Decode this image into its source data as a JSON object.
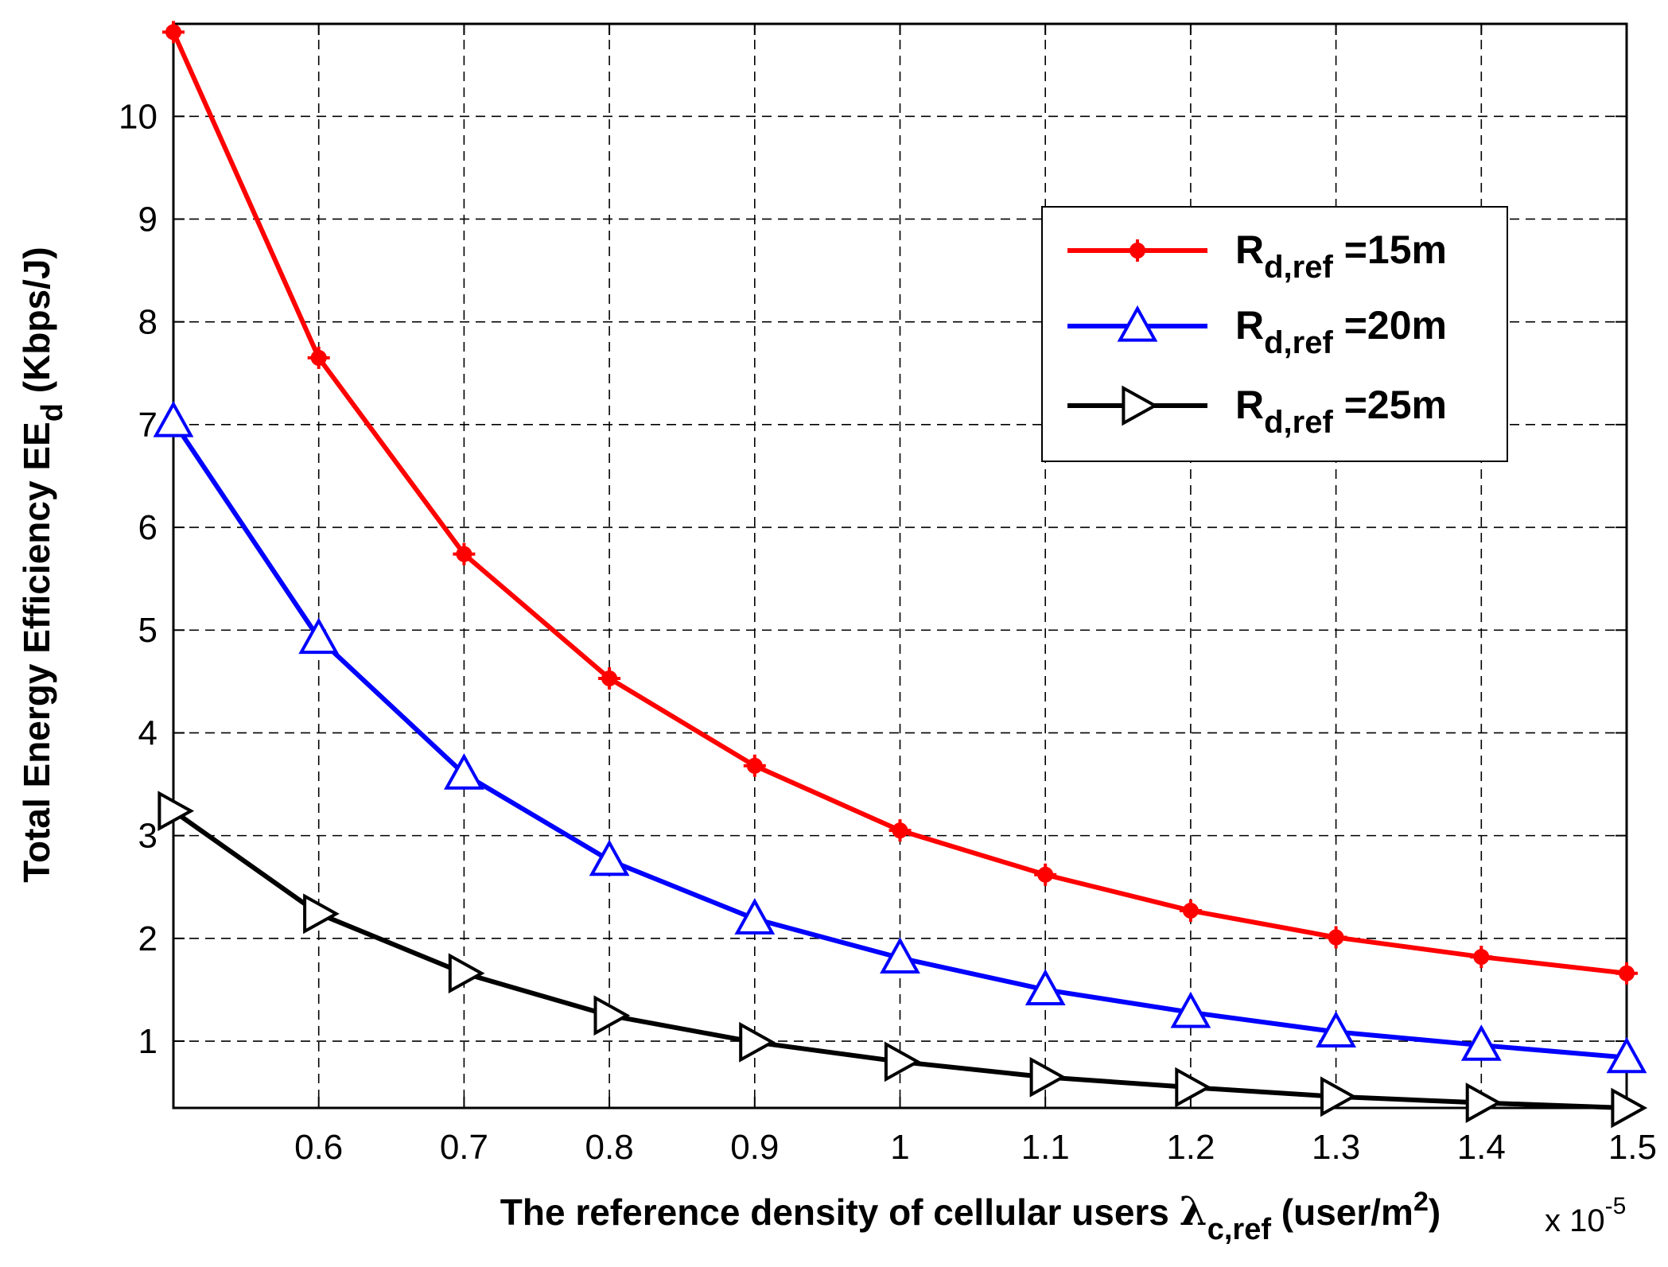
{
  "chart_data": {
    "type": "line",
    "x": [
      0.5,
      0.6,
      0.7,
      0.8,
      0.9,
      1.0,
      1.1,
      1.2,
      1.3,
      1.4,
      1.5
    ],
    "x_multiplier": "x 10",
    "x_multiplier_exp": "-5",
    "xlabel": {
      "prefix": "The reference density of cellular users ",
      "symbol": "λ",
      "subscript": "c,ref",
      "unit_open": " (user/m",
      "unit_sup": "2",
      "unit_close": ")"
    },
    "ylabel": {
      "prefix": "Total Energy Efficiency EE",
      "subscript": "d",
      "unit": " (Kbps/J)"
    },
    "xlim": [
      0.5,
      1.5
    ],
    "ylim": [
      0.35,
      10.9
    ],
    "xticks": [
      0.6,
      0.7,
      0.8,
      0.9,
      1,
      1.1,
      1.2,
      1.3,
      1.4,
      1.5
    ],
    "xtick_labels": [
      "0.6",
      "0.7",
      "0.8",
      "0.9",
      "1",
      "1.1",
      "1.2",
      "1.3",
      "1.4",
      "1.5"
    ],
    "yticks": [
      1,
      2,
      3,
      4,
      5,
      6,
      7,
      8,
      9,
      10
    ],
    "ytick_labels": [
      "1",
      "2",
      "3",
      "4",
      "5",
      "6",
      "7",
      "8",
      "9",
      "10"
    ],
    "grid": true,
    "legend_position": "upper-right",
    "series": [
      {
        "name": "R",
        "sub": "d,ref",
        "suffix": " =15m",
        "color": "#ff0000",
        "marker": "star",
        "values": [
          10.82,
          7.65,
          5.74,
          4.53,
          3.68,
          3.05,
          2.62,
          2.27,
          2.01,
          1.82,
          1.66
        ]
      },
      {
        "name": "R",
        "sub": "d,ref",
        "suffix": " =20m",
        "color": "#0000ff",
        "marker": "triangle-up",
        "values": [
          7.03,
          4.92,
          3.6,
          2.76,
          2.19,
          1.81,
          1.5,
          1.28,
          1.09,
          0.96,
          0.84
        ]
      },
      {
        "name": "R",
        "sub": "d,ref",
        "suffix": " =25m",
        "color": "#000000",
        "marker": "triangle-right",
        "values": [
          3.24,
          2.24,
          1.66,
          1.25,
          0.99,
          0.8,
          0.65,
          0.55,
          0.46,
          0.4,
          0.35
        ]
      }
    ]
  }
}
